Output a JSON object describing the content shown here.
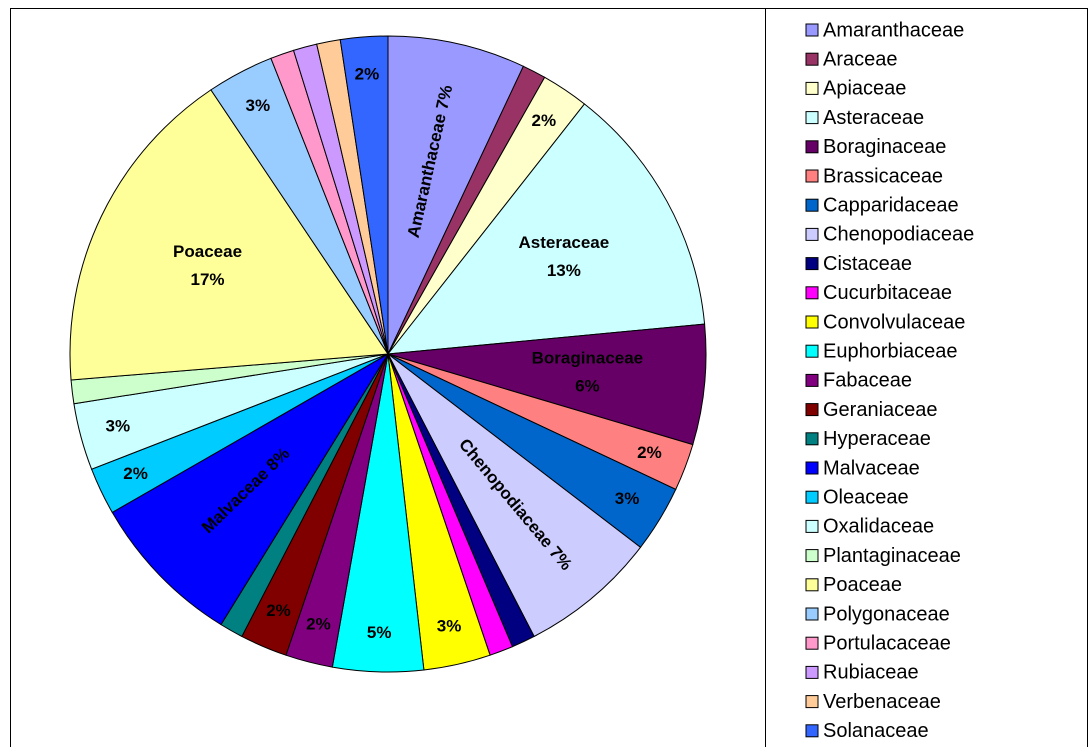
{
  "chart_data": {
    "type": "pie",
    "categories": [
      "Amaranthaceae",
      "Araceae",
      "Apiaceae",
      "Asteraceae",
      "Boraginaceae",
      "Brassicaceae",
      "Capparidaceae",
      "Chenopodiaceae",
      "Cistaceae",
      "Cucurbitaceae",
      "Convolvulaceae",
      "Euphorbiaceae",
      "Fabaceae",
      "Geraniaceae",
      "Hyperaceae",
      "Malvaceae",
      "Oleaceae",
      "Oxalidaceae",
      "Plantaginaceae",
      "Poaceae",
      "Polygonaceae",
      "Portulacaceae",
      "Rubiaceae",
      "Verbenaceae",
      "Solanaceae"
    ],
    "values": [
      7.0,
      1.2,
      2.4,
      12.9,
      6.1,
      2.4,
      3.4,
      7.0,
      1.2,
      1.2,
      3.4,
      4.6,
      2.4,
      2.4,
      1.2,
      7.9,
      2.4,
      3.4,
      1.2,
      16.9,
      3.4,
      1.2,
      1.2,
      1.2,
      2.4
    ],
    "value_labels": [
      "Amaranthaceae 7%",
      null,
      "2%",
      "Asteraceae 13%",
      "Boraginaceae 6%",
      "2%",
      "3%",
      "Chenopodiaceae 7%",
      null,
      null,
      "3%",
      "5%",
      "2%",
      "2%",
      null,
      "Malvaceae 8%",
      "2%",
      "3%",
      null,
      "Poaceae 17%",
      "3%",
      null,
      null,
      null,
      "2%"
    ],
    "colors": [
      "#9999ff",
      "#993366",
      "#ffffcc",
      "#ccffff",
      "#660066",
      "#ff8080",
      "#0066cc",
      "#ccccff",
      "#000080",
      "#ff00ff",
      "#ffff00",
      "#00ffff",
      "#800080",
      "#800000",
      "#008080",
      "#0000ff",
      "#00ccff",
      "#ccffff",
      "#ccffcc",
      "#ffff99",
      "#99ccff",
      "#ff99cc",
      "#cc99ff",
      "#ffcc99",
      "#3366ff"
    ],
    "legend": "right"
  }
}
